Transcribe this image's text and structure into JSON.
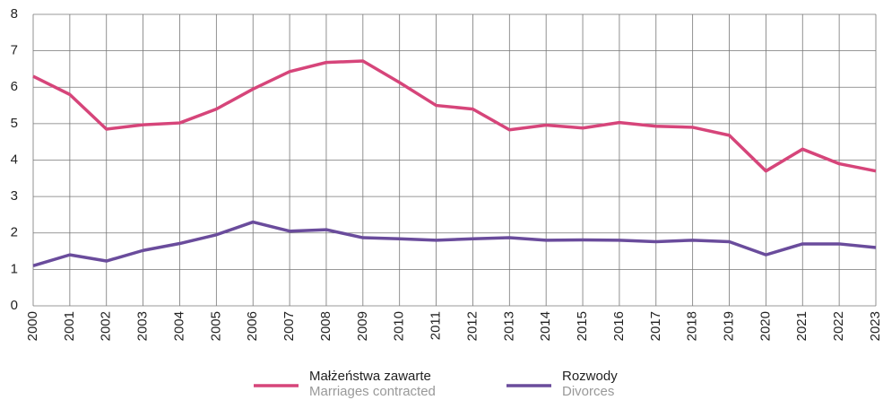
{
  "chart_data": {
    "type": "line",
    "categories": [
      "2000",
      "2001",
      "2002",
      "2003",
      "2004",
      "2005",
      "2006",
      "2007",
      "2008",
      "2009",
      "2010",
      "2011",
      "2012",
      "2013",
      "2014",
      "2015",
      "2016",
      "2017",
      "2018",
      "2019",
      "2020",
      "2021",
      "2022",
      "2023"
    ],
    "series": [
      {
        "name": "Małżeństwa zawarte",
        "name_en": "Marriages contracted",
        "color": "#d6457a",
        "values": [
          6.3,
          5.8,
          4.85,
          4.97,
          5.02,
          5.4,
          5.95,
          6.43,
          6.68,
          6.72,
          6.13,
          5.5,
          5.4,
          4.83,
          4.96,
          4.88,
          5.03,
          4.93,
          4.9,
          4.68,
          3.7,
          4.3,
          3.9,
          3.7
        ]
      },
      {
        "name": "Rozwody",
        "name_en": "Divorces",
        "color": "#6a4c9c",
        "values": [
          1.1,
          1.4,
          1.23,
          1.52,
          1.71,
          1.95,
          2.3,
          2.05,
          2.09,
          1.87,
          1.84,
          1.8,
          1.84,
          1.87,
          1.8,
          1.81,
          1.8,
          1.76,
          1.8,
          1.76,
          1.4,
          1.7,
          1.7,
          1.6
        ]
      }
    ],
    "ylim": [
      0,
      8
    ],
    "yticks": [
      0,
      1,
      2,
      3,
      4,
      5,
      6,
      7,
      8
    ],
    "grid": true
  }
}
